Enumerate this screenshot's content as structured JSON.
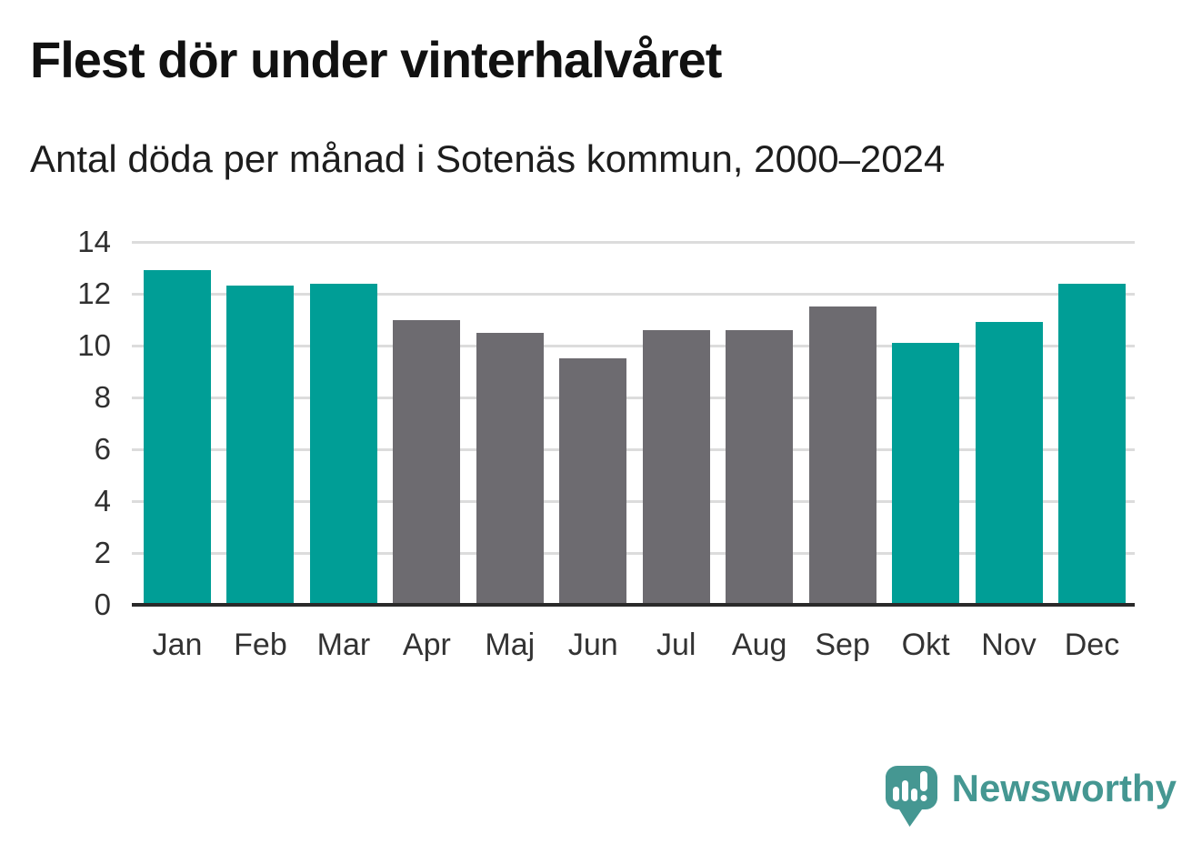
{
  "chart_data": {
    "type": "bar",
    "title": "Flest dör under vinterhalvåret",
    "subtitle": "Antal döda per månad i Sotenäs kommun, 2000–2024",
    "categories": [
      "Jan",
      "Feb",
      "Mar",
      "Apr",
      "Maj",
      "Jun",
      "Jul",
      "Aug",
      "Sep",
      "Okt",
      "Nov",
      "Dec"
    ],
    "values": [
      12.9,
      12.3,
      12.4,
      11.0,
      10.5,
      9.5,
      10.6,
      10.6,
      11.5,
      10.1,
      10.9,
      12.4
    ],
    "groups": [
      "winter",
      "winter",
      "winter",
      "summer",
      "summer",
      "summer",
      "summer",
      "summer",
      "summer",
      "winter",
      "winter",
      "winter"
    ],
    "colors": {
      "winter": "#009e96",
      "summer": "#6d6b70"
    },
    "xlabel": "",
    "ylabel": "",
    "ylim": [
      0,
      14
    ],
    "yticks": [
      0,
      2,
      4,
      6,
      8,
      10,
      12,
      14
    ],
    "grid": true,
    "legend": "none",
    "gridline_color": "#dcdcdc",
    "axis_color": "#2a2a2a"
  },
  "branding": {
    "logo_text": "Newsworthy",
    "logo_color": "#459792",
    "logo_icon": "bar-chart-speech-bubble-icon"
  }
}
